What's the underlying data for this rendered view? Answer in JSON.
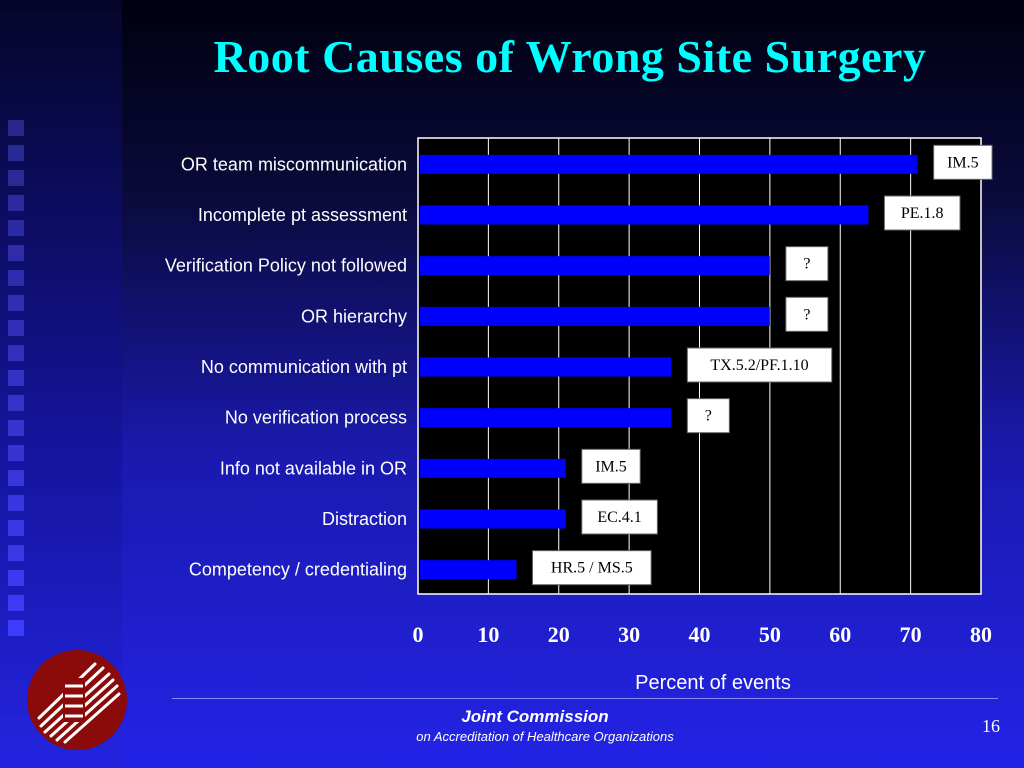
{
  "slide": {
    "title": "Root Causes of Wrong Site Surgery",
    "footer_org": "Joint Commission",
    "footer_sub": "on Accreditation of Healthcare Organizations",
    "page_number": "16"
  },
  "colors": {
    "title": "#00ffff",
    "bar": "#0000ff",
    "plot_bg": "#000000",
    "logo": "#8b0a0a"
  },
  "chart_data": {
    "type": "bar",
    "orientation": "horizontal",
    "title": "Root Causes of Wrong Site Surgery",
    "xlabel": "Percent of events",
    "ylabel": "",
    "xlim": [
      0,
      80
    ],
    "xticks": [
      "0",
      "10",
      "20",
      "30",
      "40",
      "50",
      "60",
      "70",
      "80"
    ],
    "grid": "vertical",
    "categories": [
      "OR team miscommunication",
      "Incomplete pt assessment",
      "Verification Policy not followed",
      "OR hierarchy",
      "No communication with pt",
      "No verification process",
      "Info not available in OR",
      "Distraction",
      "Competency / credentialing"
    ],
    "values": [
      71,
      64,
      50,
      50,
      36,
      36,
      21,
      21,
      14
    ],
    "annotations": [
      "IM.5",
      "PE.1.8",
      "?",
      "?",
      "TX.5.2/PF.1.10",
      "?",
      "IM.5",
      "EC.4.1",
      "HR.5 / MS.5"
    ]
  }
}
